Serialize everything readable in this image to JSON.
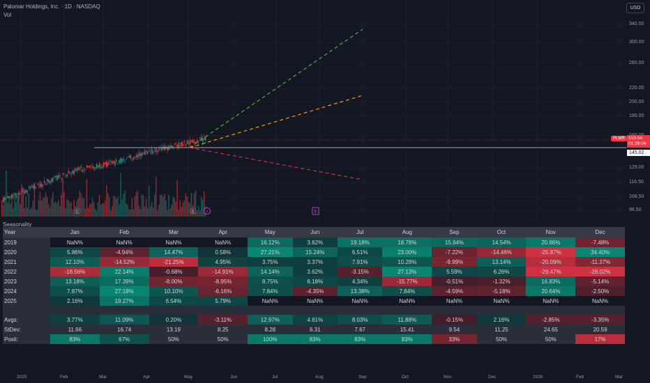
{
  "header": {
    "symbol_title": "Palomar Holdings, Inc. · 1D · NASDAQ",
    "volume_label": "Vol",
    "currency": "USD"
  },
  "price_axis": [
    "340.00",
    "300.00",
    "260.00",
    "220.00",
    "200.00",
    "180.00",
    "160.00",
    "129.00",
    "116.50",
    "106.50",
    "96.50"
  ],
  "price_tags": {
    "symbol": "PLMR",
    "last_price": "153.54",
    "countdown": "01:29:04",
    "line_price": "145.02"
  },
  "time_axis": [
    "2025",
    "Feb",
    "Mar",
    "Apr",
    "May",
    "Jun",
    "Jul",
    "Aug",
    "Sep",
    "Oct",
    "Nov",
    "Dec",
    "2026",
    "Feb",
    "Mar"
  ],
  "colors": {
    "up": "#089981",
    "down": "#f23645",
    "projection_up": "#4caf50",
    "projection_mid": "#ff9800",
    "projection_down": "#f23645"
  },
  "seasonality": {
    "title": "Seasonality",
    "header": [
      "Year",
      "Jan",
      "Feb",
      "Mar",
      "Apr",
      "May",
      "Jun",
      "Jul",
      "Aug",
      "Sep",
      "Oct",
      "Nov",
      "Dec"
    ],
    "rows": [
      {
        "year": "2019",
        "cells": [
          "NaN%",
          "NaN%",
          "NaN%",
          "NaN%",
          "16.12%",
          "3.62%",
          "19.18%",
          "18.78%",
          "15.84%",
          "14.54%",
          "20.86%",
          "-7.48%"
        ]
      },
      {
        "year": "2020",
        "cells": [
          "5.86%",
          "-4.94%",
          "14.47%",
          "0.58%",
          "27.21%",
          "15.24%",
          "6.51%",
          "23.00%",
          "-7.22%",
          "-14.46%",
          "-25.87%",
          "34.40%"
        ]
      },
      {
        "year": "2021",
        "cells": [
          "12.10%",
          "-14.52%",
          "-21.25%",
          "4.95%",
          "3.75%",
          "3.37%",
          "7.91%",
          "10.28%",
          "-9.99%",
          "13.14%",
          "-20.09%",
          "-11.37%"
        ]
      },
      {
        "year": "2022",
        "cells": [
          "-18.56%",
          "22.14%",
          "-0.68%",
          "-14.91%",
          "14.14%",
          "3.62%",
          "-3.15%",
          "27.13%",
          "5.59%",
          "6.26%",
          "-29.47%",
          "-28.02%"
        ]
      },
      {
        "year": "2023",
        "cells": [
          "13.18%",
          "17.39%",
          "-8.00%",
          "-8.95%",
          "8.75%",
          "6.18%",
          "4.34%",
          "-15.77%",
          "-0.51%",
          "-1.32%",
          "16.83%",
          "-5.14%"
        ]
      },
      {
        "year": "2024",
        "cells": [
          "7.87%",
          "27.18%",
          "10.10%",
          "-6.16%",
          "7.84%",
          "-4.35%",
          "13.38%",
          "7.84%",
          "-4.59%",
          "-5.18%",
          "20.64%",
          "-2.50%"
        ]
      },
      {
        "year": "2025",
        "cells": [
          "2.16%",
          "19.27%",
          "6.54%",
          "5.79%",
          "NaN%",
          "NaN%",
          "NaN%",
          "NaN%",
          "NaN%",
          "NaN%",
          "NaN%",
          "NaN%"
        ]
      }
    ],
    "stats": [
      {
        "label": "Avgs:",
        "cells": [
          "3.77%",
          "11.09%",
          "0.20%",
          "-3.11%",
          "12.97%",
          "4.61%",
          "8.03%",
          "11.88%",
          "-0.15%",
          "2.16%",
          "-2.85%",
          "-3.35%"
        ]
      },
      {
        "label": "StDev:",
        "cells": [
          "11.66",
          "16.74",
          "13.19",
          "8.25",
          "8.28",
          "6.31",
          "7.67",
          "15.41",
          "9.54",
          "11.25",
          "24.65",
          "20.59"
        ]
      },
      {
        "label": "Posit:",
        "cells": [
          "83%",
          "67%",
          "50%",
          "50%",
          "100%",
          "83%",
          "83%",
          "83%",
          "33%",
          "50%",
          "50%",
          "17%"
        ]
      }
    ]
  }
}
